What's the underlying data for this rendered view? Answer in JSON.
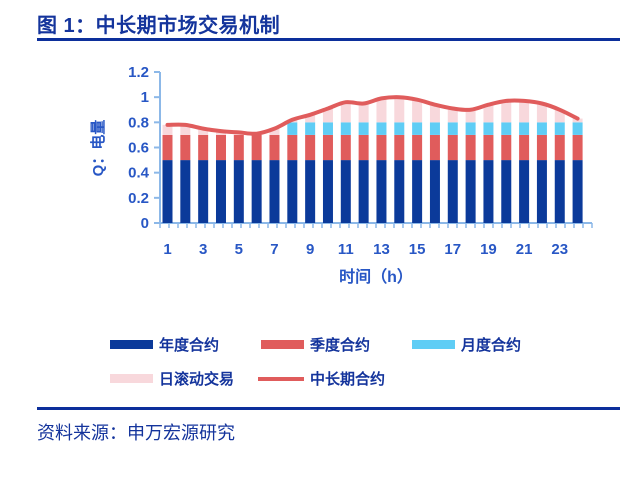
{
  "figure_title": "图 1：中长期市场交易机制",
  "source": "资料来源：申万宏源研究",
  "colors": {
    "title_navy": "#14349C",
    "rule_navy": "#0C2F9B",
    "axis_line": "#8CB8E8",
    "tick_text": "#2857C5"
  },
  "chart_data": {
    "type": "bar",
    "subtype": "stacked-bars-with-line-overlay",
    "x": [
      1,
      2,
      3,
      4,
      5,
      6,
      7,
      8,
      9,
      10,
      11,
      12,
      13,
      14,
      15,
      16,
      17,
      18,
      19,
      20,
      21,
      22,
      23,
      24
    ],
    "xticks_labeled": [
      1,
      3,
      5,
      7,
      9,
      11,
      13,
      15,
      17,
      19,
      21,
      23
    ],
    "xlabel": "时间（h）",
    "ylabel": "Q：电量",
    "ylim": [
      0,
      1.2
    ],
    "yticks": [
      0,
      0.2,
      0.4,
      0.6,
      0.8,
      1,
      1.2
    ],
    "grid": false,
    "legend_position": "bottom",
    "series": [
      {
        "name": "年度合约",
        "type": "bar",
        "color": "#0B3A9A",
        "values": [
          0.5,
          0.5,
          0.5,
          0.5,
          0.5,
          0.5,
          0.5,
          0.5,
          0.5,
          0.5,
          0.5,
          0.5,
          0.5,
          0.5,
          0.5,
          0.5,
          0.5,
          0.5,
          0.5,
          0.5,
          0.5,
          0.5,
          0.5,
          0.5
        ]
      },
      {
        "name": "季度合约",
        "type": "bar",
        "color": "#E05C5C",
        "values": [
          0.2,
          0.2,
          0.2,
          0.2,
          0.2,
          0.2,
          0.2,
          0.2,
          0.2,
          0.2,
          0.2,
          0.2,
          0.2,
          0.2,
          0.2,
          0.2,
          0.2,
          0.2,
          0.2,
          0.2,
          0.2,
          0.2,
          0.2,
          0.2
        ]
      },
      {
        "name": "月度合约",
        "type": "bar",
        "color": "#5FCDF5",
        "values": [
          0,
          0,
          0,
          0,
          0,
          0,
          0,
          0.1,
          0.1,
          0.1,
          0.1,
          0.1,
          0.1,
          0.1,
          0.1,
          0.1,
          0.1,
          0.1,
          0.1,
          0.1,
          0.1,
          0.1,
          0.1,
          0.1
        ]
      },
      {
        "name": "日滚动交易",
        "type": "bar",
        "color": "#F8D8DC",
        "values": [
          0.08,
          0.08,
          0.05,
          0.03,
          0.02,
          0.01,
          0.05,
          0.02,
          0.06,
          0.11,
          0.16,
          0.15,
          0.19,
          0.2,
          0.18,
          0.14,
          0.11,
          0.1,
          0.14,
          0.17,
          0.17,
          0.15,
          0.1,
          0.03
        ]
      },
      {
        "name": "中长期合约",
        "type": "line",
        "color": "#E05C5C",
        "values": [
          0.78,
          0.78,
          0.75,
          0.73,
          0.72,
          0.71,
          0.75,
          0.82,
          0.86,
          0.91,
          0.96,
          0.95,
          0.99,
          1.0,
          0.98,
          0.94,
          0.91,
          0.9,
          0.94,
          0.97,
          0.97,
          0.95,
          0.9,
          0.83
        ]
      }
    ]
  }
}
